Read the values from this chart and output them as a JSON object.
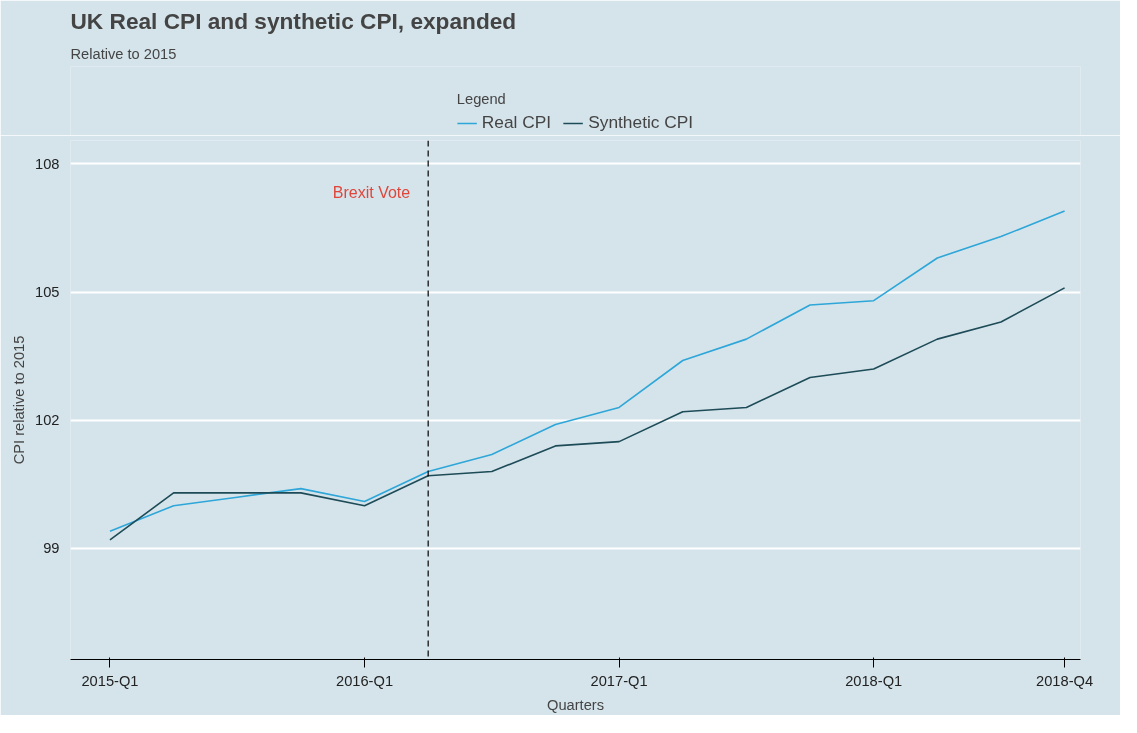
{
  "chart_data": {
    "type": "line",
    "title": "UK Real CPI and synthetic CPI, expanded",
    "subtitle": "Relative to 2015",
    "xlabel": "Quarters",
    "ylabel": "CPI relative to 2015",
    "legend_title": "Legend",
    "categories": [
      "2015-Q1",
      null,
      null,
      null,
      "2016-Q1",
      null,
      null,
      null,
      "2017-Q1",
      null,
      null,
      null,
      "2018-Q1",
      null,
      null,
      "2018-Q4"
    ],
    "series": [
      {
        "name": "Real CPI",
        "color": "#2ea6d8",
        "values": [
          99.4,
          100.0,
          100.2,
          100.4,
          100.1,
          100.8,
          101.2,
          101.9,
          102.3,
          103.4,
          103.9,
          104.7,
          104.8,
          105.8,
          106.3,
          106.9
        ]
      },
      {
        "name": "Synthetic CPI",
        "color": "#1d4b57",
        "values": [
          99.2,
          100.3,
          100.3,
          100.3,
          100.0,
          100.7,
          100.8,
          101.4,
          101.5,
          102.2,
          102.3,
          103.0,
          103.2,
          103.9,
          104.3,
          105.1
        ]
      }
    ],
    "ylim": [
      96.4,
      108.55
    ],
    "yticks": [
      99,
      102,
      105,
      108
    ],
    "annotations": [
      "Brexit Vote"
    ],
    "grid": "y",
    "legend": "top",
    "line_style": "solid",
    "marker": "none"
  }
}
